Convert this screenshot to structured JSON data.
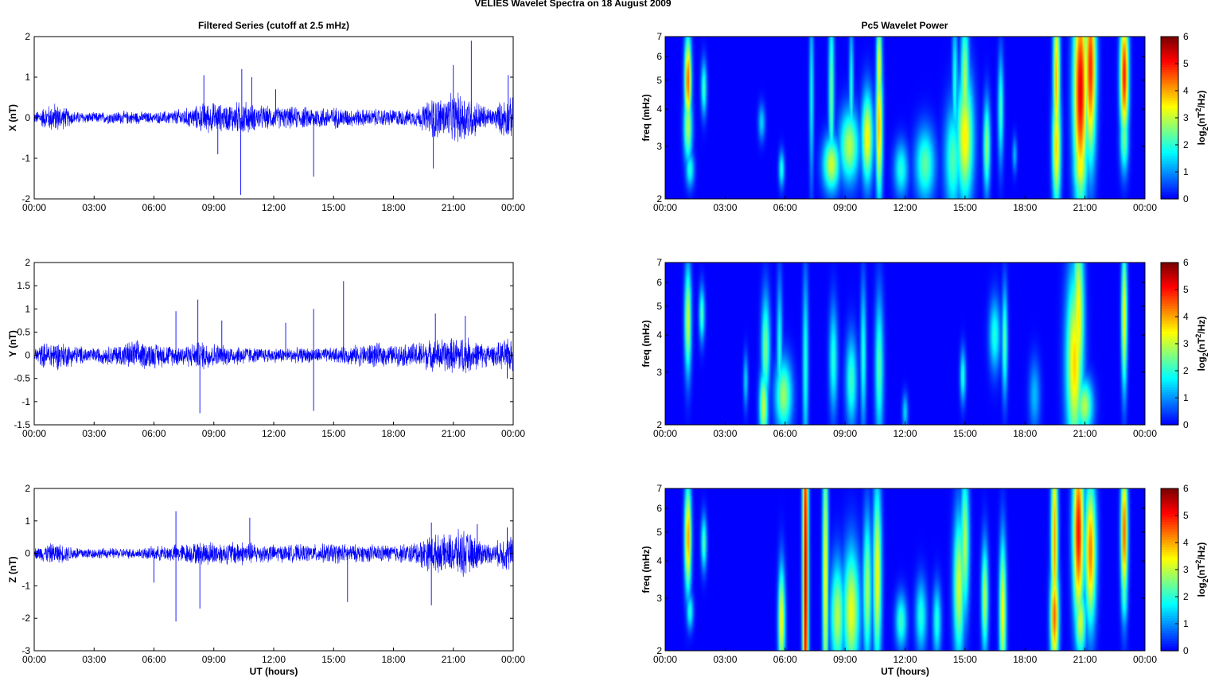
{
  "figure": {
    "suptitle": "VELIES Wavelet Spectra on 18 August    2009",
    "left_title": "Filtered Series (cutoff at 2.5 mHz)",
    "right_title": "Pc5 Wavelet Power",
    "xlabel": "UT (hours)"
  },
  "chart_data": [
    {
      "type": "line",
      "ylabel": "X (nT)",
      "series_color": "#0000ff",
      "xlim": [
        0,
        24
      ],
      "ylim": [
        -2,
        2
      ],
      "xticks": [
        "00:00",
        "03:00",
        "06:00",
        "09:00",
        "12:00",
        "15:00",
        "18:00",
        "21:00",
        "00:00"
      ],
      "yticks": [
        -2,
        -1,
        0,
        1,
        2
      ],
      "series": [
        {
          "envelope_x": [
            0,
            0.5,
            1,
            1.5,
            2,
            3,
            4,
            5,
            6,
            7,
            8,
            8.5,
            9,
            9.5,
            10,
            10.5,
            11,
            12,
            13,
            14,
            15,
            16,
            17,
            18,
            19,
            19.5,
            20,
            20.5,
            21,
            21.5,
            22,
            22.5,
            23,
            23.5,
            24
          ],
          "envelope_amp": [
            0.12,
            0.25,
            0.35,
            0.25,
            0.15,
            0.12,
            0.15,
            0.15,
            0.12,
            0.18,
            0.25,
            0.35,
            0.35,
            0.3,
            0.35,
            0.4,
            0.3,
            0.25,
            0.25,
            0.25,
            0.25,
            0.2,
            0.2,
            0.2,
            0.18,
            0.3,
            0.5,
            0.45,
            0.55,
            0.6,
            0.45,
            0.3,
            0.2,
            0.45,
            0.45
          ],
          "spikes": [
            [
              8.5,
              1.05
            ],
            [
              10.35,
              -1.9
            ],
            [
              10.4,
              1.2
            ],
            [
              10.9,
              1.0
            ],
            [
              14.0,
              -1.45
            ],
            [
              21.0,
              1.3
            ],
            [
              21.9,
              1.9
            ],
            [
              20.0,
              -1.25
            ],
            [
              23.75,
              1.05
            ],
            [
              9.2,
              -0.9
            ],
            [
              12.1,
              0.7
            ]
          ]
        }
      ]
    },
    {
      "type": "line",
      "ylabel": "Y (nT)",
      "series_color": "#0000ff",
      "xlim": [
        0,
        24
      ],
      "ylim": [
        -1.5,
        2
      ],
      "xticks": [
        "00:00",
        "03:00",
        "06:00",
        "09:00",
        "12:00",
        "15:00",
        "18:00",
        "21:00",
        "00:00"
      ],
      "yticks": [
        -1.5,
        -1,
        -0.5,
        0,
        0.5,
        1,
        1.5,
        2
      ],
      "series": [
        {
          "envelope_x": [
            0,
            0.5,
            1,
            1.5,
            2,
            3,
            4,
            5,
            6,
            7,
            8,
            8.5,
            9,
            9.5,
            10,
            10.5,
            11,
            12,
            13,
            14,
            15,
            16,
            17,
            18,
            19,
            19.5,
            20,
            20.5,
            21,
            21.5,
            22,
            22.5,
            23,
            23.5,
            24
          ],
          "envelope_amp": [
            0.15,
            0.25,
            0.3,
            0.25,
            0.2,
            0.15,
            0.2,
            0.3,
            0.25,
            0.2,
            0.25,
            0.3,
            0.25,
            0.2,
            0.2,
            0.2,
            0.15,
            0.15,
            0.15,
            0.15,
            0.15,
            0.2,
            0.25,
            0.2,
            0.25,
            0.3,
            0.3,
            0.35,
            0.35,
            0.4,
            0.3,
            0.25,
            0.2,
            0.3,
            0.35
          ],
          "spikes": [
            [
              7.1,
              0.95
            ],
            [
              8.2,
              1.2
            ],
            [
              8.3,
              -1.25
            ],
            [
              9.4,
              0.75
            ],
            [
              12.6,
              0.7
            ],
            [
              14.0,
              1.0
            ],
            [
              14.0,
              -1.2
            ],
            [
              15.5,
              1.6
            ],
            [
              20.1,
              0.9
            ],
            [
              21.6,
              0.85
            ],
            [
              23.7,
              -0.5
            ]
          ]
        }
      ]
    },
    {
      "type": "line",
      "ylabel": "Z (nT)",
      "series_color": "#0000ff",
      "xlim": [
        0,
        24
      ],
      "ylim": [
        -3,
        2
      ],
      "xticks": [
        "00:00",
        "03:00",
        "06:00",
        "09:00",
        "12:00",
        "15:00",
        "18:00",
        "21:00",
        "00:00"
      ],
      "yticks": [
        -3,
        -2,
        -1,
        0,
        1,
        2
      ],
      "series": [
        {
          "envelope_x": [
            0,
            0.5,
            1,
            1.5,
            2,
            3,
            4,
            5,
            6,
            7,
            8,
            8.5,
            9,
            9.5,
            10,
            10.5,
            11,
            12,
            13,
            14,
            15,
            16,
            17,
            18,
            19,
            19.5,
            20,
            20.5,
            21,
            21.5,
            22,
            22.5,
            23,
            23.5,
            24
          ],
          "envelope_amp": [
            0.15,
            0.25,
            0.3,
            0.25,
            0.2,
            0.15,
            0.15,
            0.15,
            0.2,
            0.25,
            0.3,
            0.35,
            0.35,
            0.3,
            0.35,
            0.35,
            0.3,
            0.25,
            0.25,
            0.25,
            0.3,
            0.25,
            0.25,
            0.25,
            0.3,
            0.45,
            0.55,
            0.5,
            0.6,
            0.7,
            0.5,
            0.35,
            0.25,
            0.5,
            0.5
          ],
          "spikes": [
            [
              7.1,
              1.3
            ],
            [
              7.1,
              -2.1
            ],
            [
              6.0,
              -0.9
            ],
            [
              8.3,
              -1.7
            ],
            [
              10.8,
              1.1
            ],
            [
              15.7,
              -1.5
            ],
            [
              19.9,
              0.95
            ],
            [
              19.9,
              -1.6
            ],
            [
              22.2,
              0.9
            ],
            [
              23.7,
              0.8
            ]
          ]
        }
      ]
    },
    {
      "type": "heatmap",
      "ylabel": "freq (mHz)",
      "xlim": [
        0,
        24
      ],
      "ylim": [
        2,
        7
      ],
      "y_scale": "log",
      "xticks": [
        "00:00",
        "03:00",
        "06:00",
        "09:00",
        "12:00",
        "15:00",
        "18:00",
        "21:00",
        "00:00"
      ],
      "yticks": [
        2,
        3,
        4,
        5,
        6,
        7
      ],
      "colorbar": {
        "label": "log2(nT²/Hz)",
        "range": [
          0,
          6
        ],
        "ticks": [
          0,
          1,
          2,
          3,
          4,
          5,
          6
        ],
        "colormap": "jet"
      },
      "blobs": [
        [
          1.1,
          5.0,
          0.12,
          0.25,
          4.6
        ],
        [
          1.1,
          3.5,
          0.15,
          0.2,
          3.0
        ],
        [
          1.9,
          4.7,
          0.1,
          0.15,
          2.2
        ],
        [
          1.2,
          2.5,
          0.15,
          0.1,
          2.0
        ],
        [
          4.8,
          3.6,
          0.12,
          0.1,
          1.5
        ],
        [
          5.8,
          2.5,
          0.1,
          0.1,
          2.0
        ],
        [
          7.3,
          4.5,
          0.08,
          0.5,
          1.8
        ],
        [
          8.3,
          2.6,
          0.3,
          0.15,
          3.2
        ],
        [
          8.3,
          4.5,
          0.1,
          0.5,
          2.5
        ],
        [
          9.2,
          3.0,
          0.35,
          0.2,
          3.0
        ],
        [
          9.3,
          4.5,
          0.08,
          0.4,
          2.0
        ],
        [
          10.1,
          3.2,
          0.2,
          0.25,
          3.6
        ],
        [
          10.7,
          3.5,
          0.12,
          0.4,
          4.0
        ],
        [
          10.7,
          5.5,
          0.1,
          0.3,
          3.5
        ],
        [
          11.8,
          2.5,
          0.25,
          0.15,
          2.0
        ],
        [
          13.0,
          2.6,
          0.35,
          0.2,
          2.4
        ],
        [
          14.4,
          2.7,
          0.3,
          0.3,
          2.3
        ],
        [
          14.5,
          4.8,
          0.1,
          0.4,
          2.0
        ],
        [
          15.0,
          3.2,
          0.3,
          0.35,
          3.6
        ],
        [
          15.0,
          4.8,
          0.15,
          0.4,
          3.0
        ],
        [
          16.1,
          3.0,
          0.12,
          0.25,
          2.8
        ],
        [
          16.8,
          4.0,
          0.1,
          0.3,
          2.2
        ],
        [
          17.5,
          2.8,
          0.08,
          0.1,
          1.3
        ],
        [
          19.6,
          3.0,
          0.15,
          0.35,
          3.8
        ],
        [
          19.6,
          5.0,
          0.12,
          0.5,
          4.0
        ],
        [
          20.8,
          4.6,
          0.25,
          0.6,
          5.4
        ],
        [
          20.8,
          2.6,
          0.25,
          0.2,
          3.6
        ],
        [
          21.3,
          5.5,
          0.2,
          0.5,
          5.0
        ],
        [
          23.0,
          5.2,
          0.15,
          0.35,
          5.1
        ],
        [
          23.0,
          3.2,
          0.15,
          0.2,
          2.6
        ]
      ]
    },
    {
      "type": "heatmap",
      "ylabel": "freq (mHz)",
      "xlim": [
        0,
        24
      ],
      "ylim": [
        2,
        7
      ],
      "y_scale": "log",
      "xticks": [
        "00:00",
        "03:00",
        "06:00",
        "09:00",
        "12:00",
        "15:00",
        "18:00",
        "21:00",
        "00:00"
      ],
      "yticks": [
        2,
        3,
        4,
        5,
        6,
        7
      ],
      "colorbar": {
        "label": "log2(nT²/Hz)",
        "range": [
          0,
          6
        ],
        "ticks": [
          0,
          1,
          2,
          3,
          4,
          5,
          6
        ],
        "colormap": "jet"
      },
      "blobs": [
        [
          1.1,
          4.5,
          0.12,
          0.3,
          3.2
        ],
        [
          1.8,
          4.7,
          0.1,
          0.15,
          2.3
        ],
        [
          4.0,
          2.8,
          0.08,
          0.15,
          1.5
        ],
        [
          4.9,
          2.3,
          0.15,
          0.2,
          3.2
        ],
        [
          5.0,
          3.6,
          0.15,
          0.3,
          2.6
        ],
        [
          5.9,
          2.5,
          0.3,
          0.2,
          2.8
        ],
        [
          5.7,
          3.5,
          0.1,
          0.4,
          2.0
        ],
        [
          7.0,
          3.2,
          0.1,
          0.5,
          2.0
        ],
        [
          8.4,
          3.3,
          0.15,
          0.3,
          2.0
        ],
        [
          9.3,
          2.8,
          0.2,
          0.25,
          2.2
        ],
        [
          9.9,
          3.4,
          0.1,
          0.4,
          2.0
        ],
        [
          10.7,
          3.1,
          0.15,
          0.4,
          2.3
        ],
        [
          12.0,
          2.2,
          0.1,
          0.1,
          1.5
        ],
        [
          14.9,
          2.9,
          0.1,
          0.15,
          2.0
        ],
        [
          16.5,
          4.0,
          0.2,
          0.2,
          2.0
        ],
        [
          17.0,
          3.8,
          0.1,
          0.3,
          2.4
        ],
        [
          18.5,
          2.5,
          0.2,
          0.2,
          1.3
        ],
        [
          20.5,
          3.2,
          0.3,
          0.5,
          3.8
        ],
        [
          20.7,
          4.6,
          0.2,
          0.5,
          3.6
        ],
        [
          21.0,
          2.3,
          0.3,
          0.15,
          3.0
        ],
        [
          23.0,
          4.6,
          0.1,
          0.4,
          3.6
        ]
      ]
    },
    {
      "type": "heatmap",
      "ylabel": "freq (mHz)",
      "xlim": [
        0,
        24
      ],
      "ylim": [
        2,
        7
      ],
      "y_scale": "log",
      "xticks": [
        "00:00",
        "03:00",
        "06:00",
        "09:00",
        "12:00",
        "15:00",
        "18:00",
        "21:00",
        "00:00"
      ],
      "yticks": [
        2,
        3,
        4,
        5,
        6,
        7
      ],
      "colorbar": {
        "label": "log2(nT²/Hz)",
        "range": [
          0,
          6
        ],
        "ticks": [
          0,
          1,
          2,
          3,
          4,
          5,
          6
        ],
        "colormap": "jet"
      },
      "blobs": [
        [
          1.1,
          4.8,
          0.12,
          0.3,
          4.2
        ],
        [
          1.9,
          4.6,
          0.1,
          0.15,
          2.3
        ],
        [
          1.2,
          2.7,
          0.12,
          0.1,
          2.0
        ],
        [
          5.8,
          2.5,
          0.12,
          0.3,
          3.6
        ],
        [
          7.0,
          3.5,
          0.1,
          1.3,
          5.8
        ],
        [
          8.0,
          3.5,
          0.1,
          0.8,
          3.6
        ],
        [
          8.6,
          2.6,
          0.25,
          0.3,
          3.0
        ],
        [
          9.3,
          2.7,
          0.3,
          0.35,
          3.4
        ],
        [
          10.1,
          3.2,
          0.15,
          0.4,
          3.0
        ],
        [
          10.6,
          3.6,
          0.15,
          0.5,
          3.6
        ],
        [
          11.8,
          2.5,
          0.2,
          0.15,
          2.2
        ],
        [
          12.8,
          2.6,
          0.2,
          0.2,
          2.0
        ],
        [
          13.6,
          2.5,
          0.15,
          0.2,
          2.0
        ],
        [
          14.7,
          3.3,
          0.2,
          0.4,
          3.2
        ],
        [
          15.0,
          4.6,
          0.15,
          0.4,
          3.0
        ],
        [
          16.0,
          3.0,
          0.12,
          0.3,
          3.0
        ],
        [
          16.9,
          2.7,
          0.12,
          0.4,
          3.6
        ],
        [
          19.5,
          2.6,
          0.15,
          0.3,
          4.6
        ],
        [
          19.5,
          4.6,
          0.12,
          0.6,
          4.2
        ],
        [
          20.7,
          5.0,
          0.2,
          0.5,
          5.2
        ],
        [
          21.3,
          4.3,
          0.2,
          0.4,
          4.4
        ],
        [
          20.8,
          2.5,
          0.2,
          0.2,
          3.2
        ],
        [
          23.0,
          5.0,
          0.12,
          0.4,
          4.6
        ],
        [
          23.0,
          3.2,
          0.12,
          0.2,
          2.4
        ]
      ]
    }
  ]
}
